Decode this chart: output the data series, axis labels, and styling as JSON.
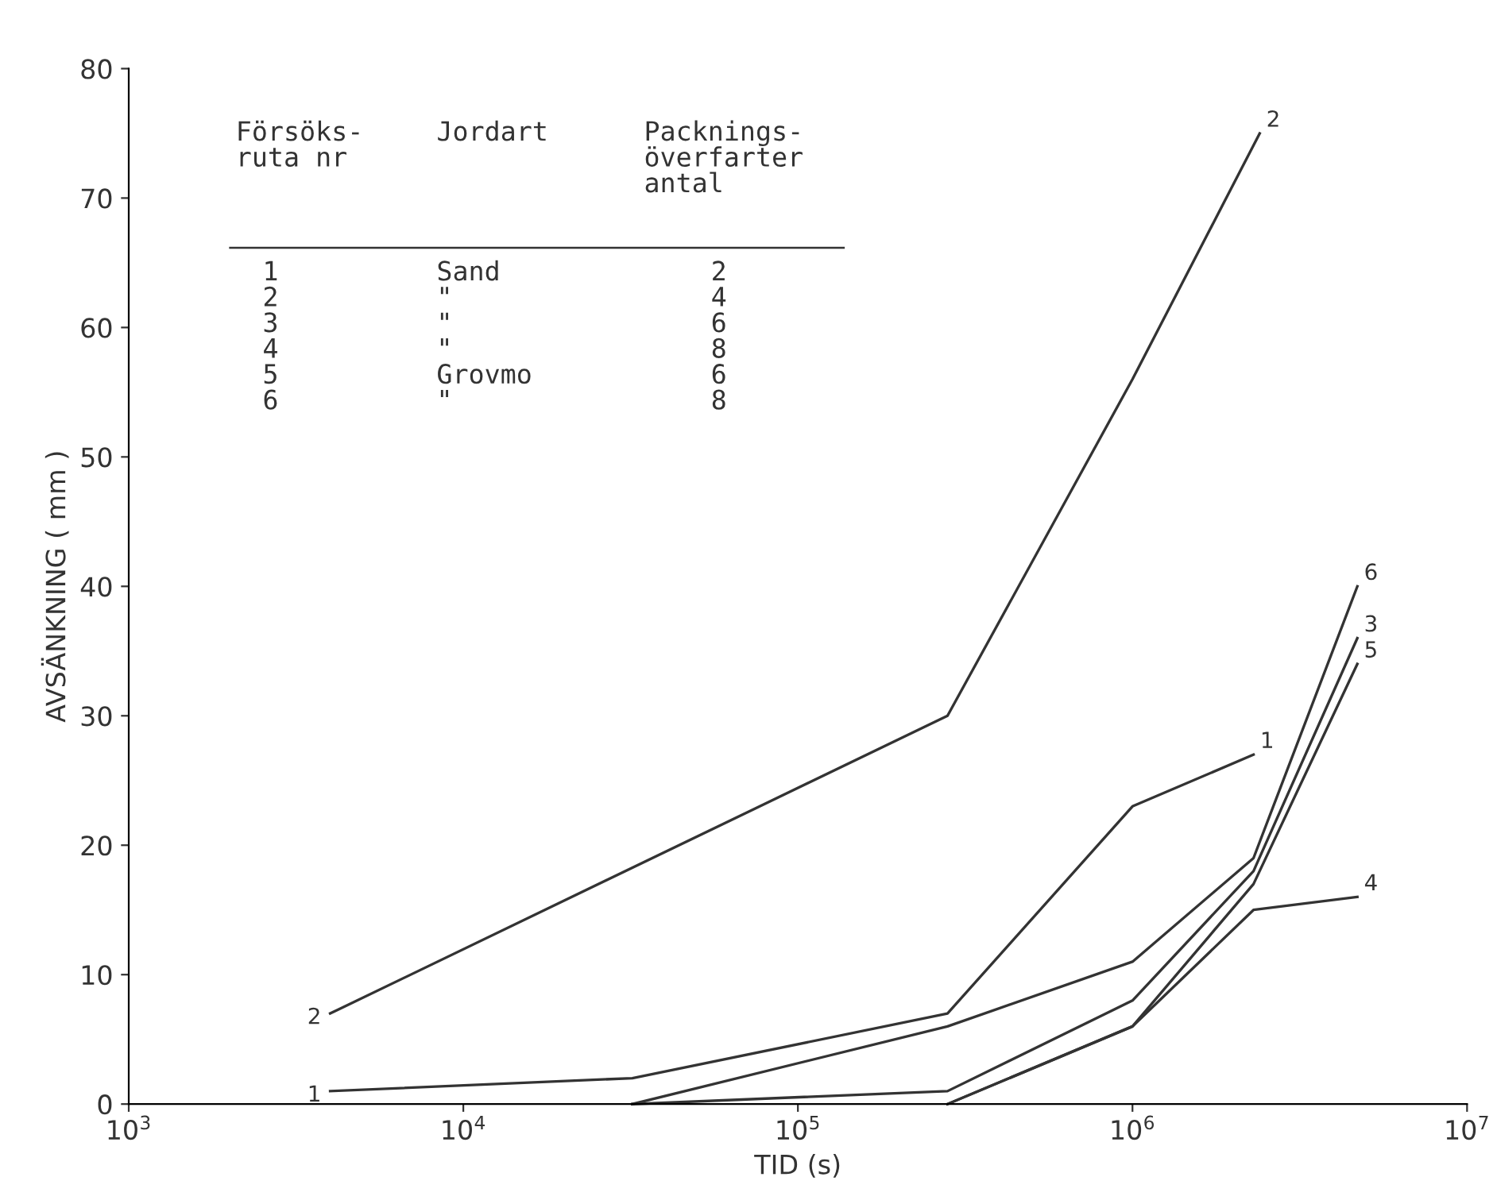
{
  "chart_data": {
    "type": "line",
    "xlabel": "TID (s)",
    "ylabel": "AVSÄNKNING ( mm )",
    "log": "x",
    "xlim": [
      1000,
      10000000
    ],
    "ylim": [
      0,
      80
    ],
    "xticks": [
      {
        "value": 1000,
        "label": "10$^{3}$"
      },
      {
        "value": 10000,
        "label": "10$^{4}$"
      },
      {
        "value": 100000,
        "label": "10$^{5}$"
      },
      {
        "value": 1000000,
        "label": "10$^{6}$"
      },
      {
        "value": 10000000,
        "label": "10$^{7}$"
      }
    ],
    "yticks": [
      0,
      10,
      20,
      30,
      40,
      50,
      60,
      70,
      80
    ],
    "grid": false,
    "legend": false,
    "marker": "none",
    "line_style": "solid",
    "series": [
      {
        "name": "2",
        "color": "#333333",
        "x": [
          4000,
          280000,
          1000000,
          2400000
        ],
        "values": [
          7,
          30,
          56,
          75
        ]
      },
      {
        "name": "1",
        "color": "#333333",
        "x": [
          4000,
          32000,
          280000,
          1000000,
          2300000
        ],
        "values": [
          1,
          2,
          7,
          23,
          27
        ]
      },
      {
        "name": "6",
        "color": "#333333",
        "x": [
          32000,
          280000,
          1000000,
          2300000,
          4700000
        ],
        "values": [
          0,
          6,
          11,
          19,
          40
        ]
      },
      {
        "name": "3",
        "color": "#333333",
        "x": [
          32000,
          280000,
          1000000,
          2300000,
          4700000
        ],
        "values": [
          0,
          1,
          8,
          18,
          36
        ]
      },
      {
        "name": "5",
        "color": "#333333",
        "x": [
          280000,
          1000000,
          2300000,
          4700000
        ],
        "values": [
          0,
          6,
          17,
          34
        ]
      },
      {
        "name": "4",
        "color": "#333333",
        "x": [
          280000,
          1000000,
          2300000,
          4700000
        ],
        "values": [
          0,
          6,
          15,
          16
        ]
      }
    ],
    "annotations": [
      "Försöks-\nruta nr",
      "Jordart",
      "Packnings-\növerfarter\nantal",
      "1\n2\n3\n4\n5\n6",
      "Sand\n\"\n\"\n\"\nGrovmo\n\"",
      "2\n4\n6\n8\n6\n8"
    ]
  }
}
